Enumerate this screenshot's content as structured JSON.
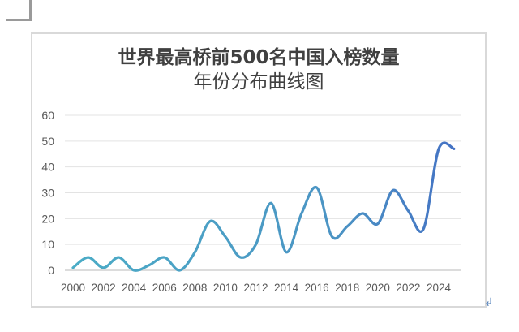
{
  "chart_data": {
    "type": "line",
    "title": "世界最高桥前500名中国入榜数量年份分布曲线图",
    "title_lines": [
      "世界最高桥前500名中国入榜数量",
      "年份分布曲线图"
    ],
    "xlabel": "",
    "ylabel": "",
    "x": [
      2000,
      2001,
      2002,
      2003,
      2004,
      2005,
      2006,
      2007,
      2008,
      2009,
      2010,
      2011,
      2012,
      2013,
      2014,
      2015,
      2016,
      2017,
      2018,
      2019,
      2020,
      2021,
      2022,
      2023,
      2024,
      2025
    ],
    "series": [
      {
        "name": "中国入榜数量",
        "values": [
          1,
          5,
          1,
          5,
          0,
          2,
          5,
          0,
          7,
          19,
          13,
          5,
          10,
          26,
          7,
          22,
          32,
          13,
          17,
          22,
          18,
          31,
          23,
          16,
          47,
          47
        ]
      }
    ],
    "x_tick_labels": [
      "2000",
      "2002",
      "2004",
      "2006",
      "2008",
      "2010",
      "2012",
      "2014",
      "2016",
      "2018",
      "2020",
      "2022",
      "2024"
    ],
    "y_tick_labels": [
      "0",
      "10",
      "20",
      "30",
      "40",
      "50",
      "60"
    ],
    "ylim": [
      0,
      60
    ],
    "grid": true,
    "smooth": true,
    "legend": "none",
    "line_gradient": [
      "#4bacc6",
      "#4472c4"
    ]
  }
}
